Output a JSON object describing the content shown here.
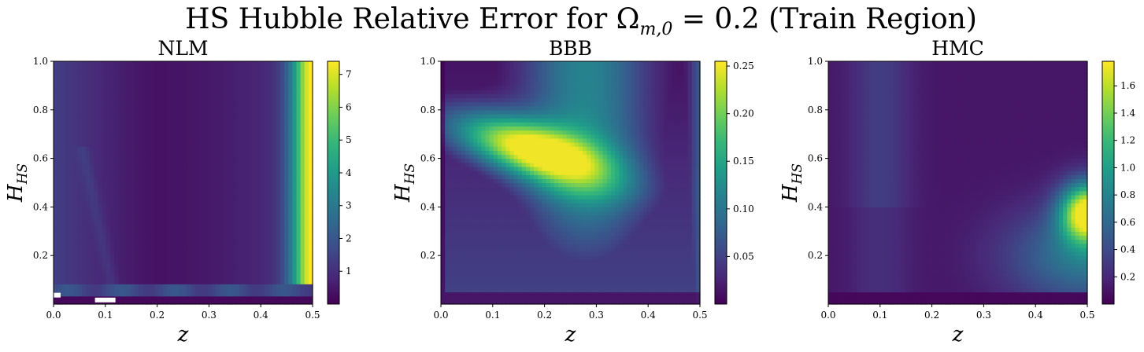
{
  "figure": {
    "title": "HS Hubble Relative Error for Ω",
    "title_subscript": "m,0",
    "title_tail": " = 0.2 (Train Region)"
  },
  "chart_data": [
    {
      "type": "heatmap",
      "title": "NLM",
      "xlabel": "z",
      "ylabel": "H",
      "ylabel_subscript": "HS",
      "xlim": [
        0.0,
        0.5
      ],
      "ylim": [
        0.0,
        1.0
      ],
      "x_ticks": [
        "0.0",
        "0.1",
        "0.2",
        "0.3",
        "0.4",
        "0.5"
      ],
      "y_ticks": [
        "0.2",
        "0.4",
        "0.6",
        "0.8",
        "1.0"
      ],
      "colorbar": {
        "min": 0.0,
        "max": 7.4,
        "ticks": [
          "1",
          "2",
          "3",
          "4",
          "5",
          "6",
          "7"
        ],
        "colormap": "viridis"
      },
      "description_values": {
        "high_region": "right edge z≈0.5, value up to ~7",
        "missing_cells": [
          [
            0.0,
            0.04
          ],
          [
            0.08,
            0.02
          ]
        ]
      }
    },
    {
      "type": "heatmap",
      "title": "BBB",
      "xlabel": "z",
      "ylabel": "H",
      "ylabel_subscript": "HS",
      "xlim": [
        0.0,
        0.5
      ],
      "ylim": [
        0.0,
        1.0
      ],
      "x_ticks": [
        "0.0",
        "0.1",
        "0.2",
        "0.3",
        "0.4",
        "0.5"
      ],
      "y_ticks": [
        "0.2",
        "0.4",
        "0.6",
        "0.8",
        "1.0"
      ],
      "colorbar": {
        "min": 0.0,
        "max": 0.255,
        "ticks": [
          "0.05",
          "0.10",
          "0.15",
          "0.20",
          "0.25"
        ],
        "colormap": "viridis"
      },
      "description_values": {
        "peak": {
          "z": 0.17,
          "H": 0.64,
          "value": 0.25
        }
      }
    },
    {
      "type": "heatmap",
      "title": "HMC",
      "xlabel": "z",
      "ylabel": "H",
      "ylabel_subscript": "HS",
      "xlim": [
        0.0,
        0.5
      ],
      "ylim": [
        0.0,
        1.0
      ],
      "x_ticks": [
        "0.0",
        "0.1",
        "0.2",
        "0.3",
        "0.4",
        "0.5"
      ],
      "y_ticks": [
        "0.2",
        "0.4",
        "0.6",
        "0.8",
        "1.0"
      ],
      "colorbar": {
        "min": 0.0,
        "max": 1.78,
        "ticks": [
          "0.2",
          "0.4",
          "0.6",
          "0.8",
          "1.0",
          "1.2",
          "1.4",
          "1.6"
        ],
        "colormap": "viridis"
      },
      "description_values": {
        "peak": {
          "z": 0.5,
          "H": 0.38,
          "value": 1.7
        }
      }
    }
  ]
}
